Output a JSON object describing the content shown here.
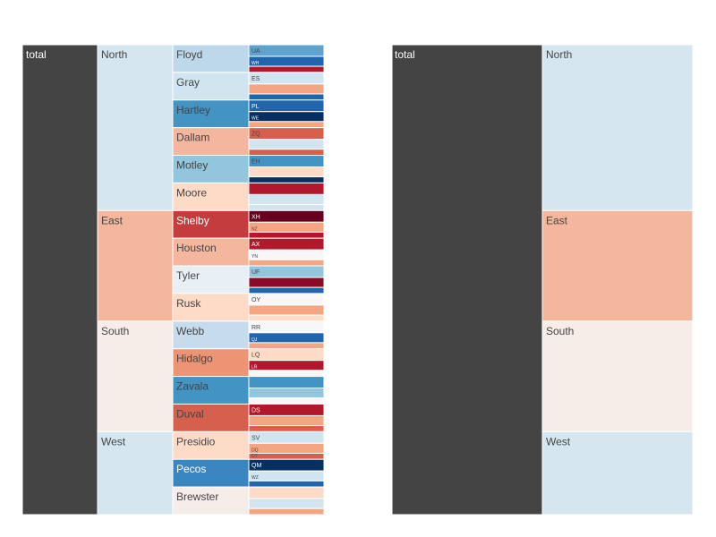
{
  "chart_data": [
    {
      "type": "icicle",
      "root": "total",
      "regions": [
        {
          "name": "North",
          "color": "#d6e6f1",
          "counties": [
            {
              "name": "Floyd",
              "color": "#bdd8ea",
              "leaves": [
                {
                  "label": "UA",
                  "color": "#5fa2ce"
                },
                {
                  "label": "WH",
                  "color": "#2166ac"
                },
                {
                  "label": "",
                  "color": "#b2182b"
                }
              ]
            },
            {
              "name": "Gray",
              "color": "#d1e5f0",
              "leaves": [
                {
                  "label": "ES",
                  "color": "#d1e5f0"
                },
                {
                  "label": "",
                  "color": "#f4a582"
                },
                {
                  "label": "",
                  "color": "#2166ac"
                }
              ]
            },
            {
              "name": "Hartley",
              "color": "#4393c3",
              "leaves": [
                {
                  "label": "PL",
                  "color": "#2166ac"
                },
                {
                  "label": "WE",
                  "color": "#053061"
                },
                {
                  "label": "",
                  "color": "#f4a582"
                }
              ]
            },
            {
              "name": "Dallam",
              "color": "#f4b79e",
              "leaves": [
                {
                  "label": "ZQ",
                  "color": "#d6604d"
                },
                {
                  "label": "",
                  "color": "#d1e5f0"
                },
                {
                  "label": "",
                  "color": "#d6604d"
                }
              ]
            },
            {
              "name": "Motley",
              "color": "#92c5de",
              "leaves": [
                {
                  "label": "EH",
                  "color": "#4393c3"
                },
                {
                  "label": "",
                  "color": "#fddbc7"
                },
                {
                  "label": "",
                  "color": "#053061"
                }
              ]
            },
            {
              "name": "Moore",
              "color": "#fddbc7",
              "leaves": [
                {
                  "label": "",
                  "color": "#b2182b"
                },
                {
                  "label": "",
                  "color": "#d1e5f0"
                },
                {
                  "label": "",
                  "color": "#d1e5f0"
                }
              ]
            }
          ]
        },
        {
          "name": "East",
          "color": "#f4b79e",
          "counties": [
            {
              "name": "Shelby",
              "color": "#c43c3c",
              "leaves": [
                {
                  "label": "XH",
                  "color": "#67001f"
                },
                {
                  "label": "NZ",
                  "color": "#f4a582"
                },
                {
                  "label": "",
                  "color": "#b2182b"
                }
              ]
            },
            {
              "name": "Houston",
              "color": "#f4b79e",
              "leaves": [
                {
                  "label": "AX",
                  "color": "#b2182b"
                },
                {
                  "label": "YN",
                  "color": "#f7f7f7"
                },
                {
                  "label": "",
                  "color": "#f4a582"
                }
              ]
            },
            {
              "name": "Tyler",
              "color": "#e8f0f5",
              "leaves": [
                {
                  "label": "UF",
                  "color": "#92c5de"
                },
                {
                  "label": "",
                  "color": "#8b0a26"
                },
                {
                  "label": "",
                  "color": "#2166ac"
                }
              ]
            },
            {
              "name": "Rusk",
              "color": "#fddbc7",
              "leaves": [
                {
                  "label": "OY",
                  "color": "#f7f7f7"
                },
                {
                  "label": "",
                  "color": "#f4a582"
                },
                {
                  "label": "",
                  "color": "#fddbc7"
                }
              ]
            }
          ]
        },
        {
          "name": "South",
          "color": "#f6ede8",
          "counties": [
            {
              "name": "Webb",
              "color": "#c6dced",
              "leaves": [
                {
                  "label": "RR",
                  "color": "#f7f7f7"
                },
                {
                  "label": "QJ",
                  "color": "#2166ac"
                },
                {
                  "label": "",
                  "color": "#f4a582"
                }
              ]
            },
            {
              "name": "Hidalgo",
              "color": "#ec9474",
              "leaves": [
                {
                  "label": "LQ",
                  "color": "#fddbc7"
                },
                {
                  "label": "LR",
                  "color": "#b2182b"
                },
                {
                  "label": "",
                  "color": "#f7f7f7"
                }
              ]
            },
            {
              "name": "Zavala",
              "color": "#4393c3",
              "leaves": [
                {
                  "label": "",
                  "color": "#4393c3"
                },
                {
                  "label": "",
                  "color": "#92c5de"
                },
                {
                  "label": "",
                  "color": "#f7f7f7"
                }
              ]
            },
            {
              "name": "Duval",
              "color": "#d6604d",
              "leaves": [
                {
                  "label": "DS",
                  "color": "#b2182b"
                },
                {
                  "label": "",
                  "color": "#f4a582"
                },
                {
                  "label": "",
                  "color": "#d6604d"
                }
              ]
            }
          ]
        },
        {
          "name": "West",
          "color": "#d6e6f1",
          "counties": [
            {
              "name": "Presidio",
              "color": "#fddbc7",
              "leaves": [
                {
                  "label": "SV",
                  "color": "#d1e5f0"
                },
                {
                  "label": "DQ",
                  "color": "#f4a582"
                },
                {
                  "label": "OT",
                  "color": "#d6604d"
                }
              ]
            },
            {
              "name": "Pecos",
              "color": "#3a86c0",
              "leaves": [
                {
                  "label": "QM",
                  "color": "#053061"
                },
                {
                  "label": "WZ",
                  "color": "#d1e5f0"
                },
                {
                  "label": "",
                  "color": "#2166ac"
                }
              ]
            },
            {
              "name": "Brewster",
              "color": "#f6ede8",
              "leaves": [
                {
                  "label": "",
                  "color": "#fddbc7"
                },
                {
                  "label": "",
                  "color": "#d1e5f0"
                },
                {
                  "label": "",
                  "color": "#f4a582"
                }
              ]
            }
          ]
        }
      ]
    },
    {
      "type": "icicle",
      "root": "total",
      "regions": [
        {
          "name": "North",
          "color": "#d6e6f1"
        },
        {
          "name": "East",
          "color": "#f4b79e"
        },
        {
          "name": "South",
          "color": "#f6ede8"
        },
        {
          "name": "West",
          "color": "#d6e6f1"
        }
      ]
    }
  ],
  "colors": {
    "root": "#444444",
    "border": "#ffffff",
    "dark_text": "#444444",
    "light_text": "#ffffff"
  }
}
